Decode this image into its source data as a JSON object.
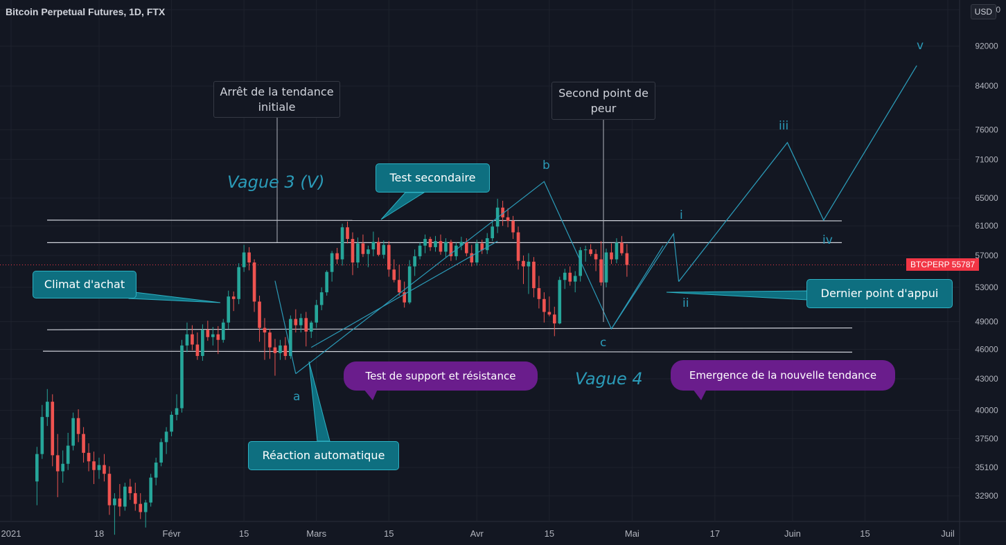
{
  "header": {
    "title": "Bitcoin Perpetual Futures, 1D, FTX"
  },
  "currency": "USD",
  "price_tag": {
    "label": "BTCPERP  55787"
  },
  "chart_data": {
    "type": "candlestick",
    "title": "Bitcoin Perpetual Futures, 1D, FTX",
    "y_scale": "log",
    "ylim": [
      30000,
      100000
    ],
    "y_ticks": [
      "100000",
      "92000",
      "84000",
      "76000",
      "71000",
      "65000",
      "61000",
      "57000",
      "53000",
      "49000",
      "46000",
      "43000",
      "40000",
      "37500",
      "35100",
      "32900"
    ],
    "x_ticks": [
      "2021",
      "18",
      "Févr",
      "15",
      "Mars",
      "15",
      "Avr",
      "15",
      "Mai",
      "17",
      "Juin",
      "15",
      "Juil"
    ],
    "last_price": 55787,
    "series": [
      {
        "name": "BTCPERP",
        "ohlc_start": "2021-01-06",
        "candles": [
          [
            34000,
            36800,
            32200,
            36200
          ],
          [
            36200,
            40500,
            35800,
            39400
          ],
          [
            39400,
            42000,
            38600,
            40800
          ],
          [
            40800,
            41500,
            35200,
            36100
          ],
          [
            36100,
            37900,
            32800,
            34800
          ],
          [
            34800,
            36500,
            33900,
            35400
          ],
          [
            35400,
            38000,
            34900,
            36900
          ],
          [
            36900,
            39800,
            36500,
            39300
          ],
          [
            39300,
            40100,
            37200,
            37900
          ],
          [
            37900,
            38500,
            35500,
            36300
          ],
          [
            36300,
            37100,
            34800,
            35600
          ],
          [
            35600,
            36400,
            33800,
            34900
          ],
          [
            34900,
            35900,
            34200,
            35300
          ],
          [
            35300,
            36200,
            34000,
            34600
          ],
          [
            34600,
            35200,
            31500,
            32200
          ],
          [
            32200,
            33100,
            30100,
            32700
          ],
          [
            32700,
            33800,
            31400,
            32100
          ],
          [
            32100,
            33900,
            31800,
            33600
          ],
          [
            33600,
            34200,
            32600,
            33100
          ],
          [
            33100,
            33900,
            31800,
            32300
          ],
          [
            32300,
            33100,
            31200,
            31700
          ],
          [
            31700,
            32600,
            30600,
            32400
          ],
          [
            32400,
            34600,
            32100,
            34300
          ],
          [
            34300,
            35900,
            33700,
            35500
          ],
          [
            35500,
            37500,
            35200,
            37200
          ],
          [
            37200,
            38500,
            36200,
            38100
          ],
          [
            38100,
            39900,
            37700,
            39600
          ],
          [
            39600,
            41500,
            39100,
            40200
          ],
          [
            40200,
            47000,
            39800,
            46400
          ],
          [
            46400,
            48900,
            45700,
            47600
          ],
          [
            47600,
            48600,
            45900,
            46500
          ],
          [
            46500,
            47800,
            44900,
            45300
          ],
          [
            45300,
            48700,
            44800,
            48100
          ],
          [
            48100,
            49100,
            46900,
            47300
          ],
          [
            47300,
            48400,
            46400,
            47600
          ],
          [
            47600,
            48500,
            45500,
            47000
          ],
          [
            47000,
            49300,
            46700,
            48900
          ],
          [
            48900,
            52600,
            48200,
            51900
          ],
          [
            51900,
            52500,
            50200,
            51600
          ],
          [
            51600,
            56000,
            51000,
            55500
          ],
          [
            55500,
            58400,
            54900,
            57400
          ],
          [
            57400,
            58100,
            55100,
            56100
          ],
          [
            56100,
            56500,
            50100,
            51300
          ],
          [
            51300,
            52000,
            46800,
            48300
          ],
          [
            48300,
            49400,
            44900,
            47800
          ],
          [
            47800,
            48200,
            45000,
            46200
          ],
          [
            46200,
            47100,
            43300,
            45600
          ],
          [
            45600,
            47000,
            44900,
            46400
          ],
          [
            46400,
            47300,
            44900,
            45300
          ],
          [
            45300,
            49700,
            45000,
            49300
          ],
          [
            49300,
            50400,
            47800,
            48600
          ],
          [
            48600,
            49900,
            47800,
            49400
          ],
          [
            49400,
            50100,
            46300,
            47900
          ],
          [
            47900,
            49100,
            47200,
            48900
          ],
          [
            48900,
            51500,
            48300,
            50900
          ],
          [
            50900,
            53000,
            50300,
            52400
          ],
          [
            52400,
            55100,
            52000,
            54900
          ],
          [
            54900,
            57600,
            53700,
            57300
          ],
          [
            57300,
            58000,
            55900,
            56500
          ],
          [
            56500,
            61300,
            55700,
            60800
          ],
          [
            60800,
            61600,
            58600,
            59200
          ],
          [
            59200,
            60100,
            54500,
            56100
          ],
          [
            56100,
            59400,
            55400,
            58600
          ],
          [
            58600,
            59800,
            56800,
            57200
          ],
          [
            57200,
            58300,
            55500,
            57800
          ],
          [
            57800,
            60200,
            56900,
            58800
          ],
          [
            58800,
            59400,
            56900,
            57100
          ],
          [
            57100,
            59000,
            56600,
            58400
          ],
          [
            58400,
            58900,
            54300,
            55200
          ],
          [
            55200,
            56500,
            53600,
            53900
          ],
          [
            53900,
            55800,
            52000,
            52400
          ],
          [
            52400,
            53700,
            50600,
            51200
          ],
          [
            51200,
            56400,
            51000,
            55600
          ],
          [
            55600,
            57800,
            54400,
            56900
          ],
          [
            56900,
            58700,
            56500,
            58300
          ],
          [
            58300,
            59800,
            57300,
            59200
          ],
          [
            59200,
            59500,
            57600,
            58100
          ],
          [
            58100,
            59600,
            57500,
            58900
          ],
          [
            58900,
            59800,
            57100,
            57500
          ],
          [
            57500,
            59300,
            56800,
            58800
          ],
          [
            58800,
            59100,
            56300,
            56900
          ],
          [
            56900,
            58700,
            56400,
            58300
          ],
          [
            58300,
            59500,
            57700,
            58800
          ],
          [
            58800,
            59300,
            56900,
            57300
          ],
          [
            57300,
            58400,
            55600,
            56100
          ],
          [
            56100,
            59100,
            55700,
            58600
          ],
          [
            58600,
            59100,
            57200,
            57700
          ],
          [
            57700,
            60000,
            57200,
            59300
          ],
          [
            59300,
            61600,
            58900,
            60900
          ],
          [
            60900,
            64900,
            60000,
            63600
          ],
          [
            63600,
            64600,
            61000,
            62200
          ],
          [
            62200,
            63500,
            60800,
            61700
          ],
          [
            61700,
            62400,
            59200,
            60100
          ],
          [
            60100,
            60900,
            55200,
            56300
          ],
          [
            56300,
            57000,
            53400,
            55600
          ],
          [
            55600,
            57300,
            52200,
            56200
          ],
          [
            56200,
            56800,
            51800,
            52900
          ],
          [
            52900,
            54400,
            50500,
            51600
          ],
          [
            51600,
            52400,
            48900,
            50100
          ],
          [
            50100,
            51900,
            49600,
            49800
          ],
          [
            49800,
            50700,
            47400,
            48800
          ],
          [
            48800,
            54300,
            48700,
            53900
          ],
          [
            53900,
            55300,
            52800,
            54800
          ],
          [
            54800,
            55600,
            53200,
            53700
          ],
          [
            53700,
            55000,
            52400,
            54400
          ],
          [
            54400,
            58100,
            53700,
            57700
          ],
          [
            57700,
            58300,
            56200,
            57800
          ],
          [
            57800,
            58500,
            56900,
            57200
          ],
          [
            57200,
            57800,
            55000,
            56500
          ],
          [
            56500,
            58900,
            53200,
            53600
          ],
          [
            53600,
            57900,
            53000,
            57400
          ],
          [
            57400,
            58600,
            55900,
            56500
          ],
          [
            56500,
            59300,
            56000,
            58700
          ],
          [
            58700,
            59600,
            57000,
            57300
          ],
          [
            57300,
            58500,
            54300,
            55787
          ]
        ]
      },
      {
        "name": "Projection",
        "points": [
          [
            "2021-05-10",
            53700
          ],
          [
            "2021-05-31",
            73800
          ],
          [
            "2021-06-07",
            61800
          ],
          [
            "2021-06-25",
            88000
          ]
        ]
      }
    ],
    "lines": [
      {
        "y1": 61800,
        "y2": 61700
      },
      {
        "y1": 58700,
        "y2": 58700
      },
      {
        "y1": 48100,
        "y2": 48300
      },
      {
        "y1": 45800,
        "y2": 45700
      }
    ],
    "annotations": [
      "Arrêt de la tendance initiale",
      "Second point de peur",
      "Vague 3 (V)",
      "Test secondaire",
      "Climat d'achat",
      "Test de support et résistance",
      "Vague 4",
      "Emergence de la nouvelle tendance",
      "Réaction automatique",
      "Dernier point d'appui",
      "a",
      "b",
      "c",
      "i",
      "ii",
      "iii",
      "iv",
      "v"
    ]
  },
  "labels": {
    "arret": "Arrêt de la tendance initiale",
    "second": "Second point de peur",
    "vague3": "Vague 3 (V)",
    "test_sec": "Test secondaire",
    "climat": "Climat d'achat",
    "test_sup": "Test de support et résistance",
    "vague4": "Vague 4",
    "emergence": "Emergence de la nouvelle tendance",
    "reaction": "Réaction automatique",
    "dernier": "Dernier point d'appui",
    "a": "a",
    "b": "b",
    "c": "c",
    "i": "i",
    "ii": "ii",
    "iii": "iii",
    "iv": "iv",
    "v": "v"
  },
  "colors": {
    "up": "#26a69a",
    "down": "#ef5350",
    "wave": "#2b9bb8",
    "teal": "#0e6f80",
    "purple": "#6a1d8c",
    "bg": "#131722"
  }
}
